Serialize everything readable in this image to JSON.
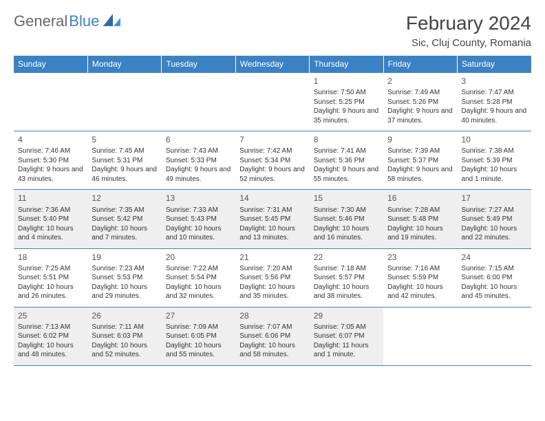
{
  "logo": {
    "text1": "General",
    "text2": "Blue"
  },
  "title": "February 2024",
  "location": "Sic, Cluj County, Romania",
  "colors": {
    "header_bg": "#3b82c4",
    "header_text": "#ffffff",
    "border": "#3b82c4",
    "shaded_bg": "#efefef",
    "body_text": "#333333",
    "logo_gray": "#666666",
    "logo_blue": "#3b82c4"
  },
  "weekdays": [
    "Sunday",
    "Monday",
    "Tuesday",
    "Wednesday",
    "Thursday",
    "Friday",
    "Saturday"
  ],
  "startOffset": 4,
  "days": [
    {
      "n": 1,
      "sr": "7:50 AM",
      "ss": "5:25 PM",
      "dl": "9 hours and 35 minutes."
    },
    {
      "n": 2,
      "sr": "7:49 AM",
      "ss": "5:26 PM",
      "dl": "9 hours and 37 minutes."
    },
    {
      "n": 3,
      "sr": "7:47 AM",
      "ss": "5:28 PM",
      "dl": "9 hours and 40 minutes."
    },
    {
      "n": 4,
      "sr": "7:46 AM",
      "ss": "5:30 PM",
      "dl": "9 hours and 43 minutes."
    },
    {
      "n": 5,
      "sr": "7:45 AM",
      "ss": "5:31 PM",
      "dl": "9 hours and 46 minutes."
    },
    {
      "n": 6,
      "sr": "7:43 AM",
      "ss": "5:33 PM",
      "dl": "9 hours and 49 minutes."
    },
    {
      "n": 7,
      "sr": "7:42 AM",
      "ss": "5:34 PM",
      "dl": "9 hours and 52 minutes."
    },
    {
      "n": 8,
      "sr": "7:41 AM",
      "ss": "5:36 PM",
      "dl": "9 hours and 55 minutes."
    },
    {
      "n": 9,
      "sr": "7:39 AM",
      "ss": "5:37 PM",
      "dl": "9 hours and 58 minutes."
    },
    {
      "n": 10,
      "sr": "7:38 AM",
      "ss": "5:39 PM",
      "dl": "10 hours and 1 minute."
    },
    {
      "n": 11,
      "sr": "7:36 AM",
      "ss": "5:40 PM",
      "dl": "10 hours and 4 minutes."
    },
    {
      "n": 12,
      "sr": "7:35 AM",
      "ss": "5:42 PM",
      "dl": "10 hours and 7 minutes."
    },
    {
      "n": 13,
      "sr": "7:33 AM",
      "ss": "5:43 PM",
      "dl": "10 hours and 10 minutes."
    },
    {
      "n": 14,
      "sr": "7:31 AM",
      "ss": "5:45 PM",
      "dl": "10 hours and 13 minutes."
    },
    {
      "n": 15,
      "sr": "7:30 AM",
      "ss": "5:46 PM",
      "dl": "10 hours and 16 minutes."
    },
    {
      "n": 16,
      "sr": "7:28 AM",
      "ss": "5:48 PM",
      "dl": "10 hours and 19 minutes."
    },
    {
      "n": 17,
      "sr": "7:27 AM",
      "ss": "5:49 PM",
      "dl": "10 hours and 22 minutes."
    },
    {
      "n": 18,
      "sr": "7:25 AM",
      "ss": "5:51 PM",
      "dl": "10 hours and 26 minutes."
    },
    {
      "n": 19,
      "sr": "7:23 AM",
      "ss": "5:53 PM",
      "dl": "10 hours and 29 minutes."
    },
    {
      "n": 20,
      "sr": "7:22 AM",
      "ss": "5:54 PM",
      "dl": "10 hours and 32 minutes."
    },
    {
      "n": 21,
      "sr": "7:20 AM",
      "ss": "5:56 PM",
      "dl": "10 hours and 35 minutes."
    },
    {
      "n": 22,
      "sr": "7:18 AM",
      "ss": "5:57 PM",
      "dl": "10 hours and 38 minutes."
    },
    {
      "n": 23,
      "sr": "7:16 AM",
      "ss": "5:59 PM",
      "dl": "10 hours and 42 minutes."
    },
    {
      "n": 24,
      "sr": "7:15 AM",
      "ss": "6:00 PM",
      "dl": "10 hours and 45 minutes."
    },
    {
      "n": 25,
      "sr": "7:13 AM",
      "ss": "6:02 PM",
      "dl": "10 hours and 48 minutes."
    },
    {
      "n": 26,
      "sr": "7:11 AM",
      "ss": "6:03 PM",
      "dl": "10 hours and 52 minutes."
    },
    {
      "n": 27,
      "sr": "7:09 AM",
      "ss": "6:05 PM",
      "dl": "10 hours and 55 minutes."
    },
    {
      "n": 28,
      "sr": "7:07 AM",
      "ss": "6:06 PM",
      "dl": "10 hours and 58 minutes."
    },
    {
      "n": 29,
      "sr": "7:05 AM",
      "ss": "6:07 PM",
      "dl": "11 hours and 1 minute."
    }
  ],
  "labels": {
    "sunrise": "Sunrise: ",
    "sunset": "Sunset: ",
    "daylight": "Daylight: "
  }
}
